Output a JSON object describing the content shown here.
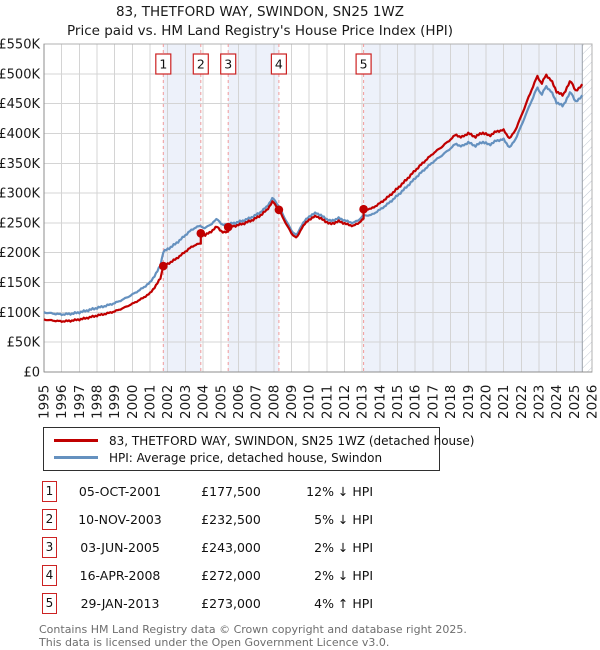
{
  "page": {
    "title_line1": "83, THETFORD WAY, SWINDON, SN25 1WZ",
    "title_line2": "Price paid vs. HM Land Registry's House Price Index (HPI)"
  },
  "chart_data": {
    "type": "line",
    "title": "83, THETFORD WAY, SWINDON, SN25 1WZ",
    "subtitle": "Price paid vs. HM Land Registry's House Price Index (HPI)",
    "x_range": [
      1995,
      2026
    ],
    "y_axis": {
      "min": 0,
      "max": 550000,
      "tick_step": 50000,
      "tick_labels": [
        "£0",
        "£50K",
        "£100K",
        "£150K",
        "£200K",
        "£250K",
        "£300K",
        "£350K",
        "£400K",
        "£450K",
        "£500K",
        "£550K"
      ]
    },
    "x_tick_labels": [
      "1995",
      "1996",
      "1997",
      "1998",
      "1999",
      "2000",
      "2001",
      "2002",
      "2003",
      "2004",
      "2005",
      "2006",
      "2007",
      "2008",
      "2009",
      "2010",
      "2011",
      "2012",
      "2013",
      "2014",
      "2015",
      "2016",
      "2017",
      "2018",
      "2019",
      "2020",
      "2021",
      "2022",
      "2023",
      "2024",
      "2025",
      "2026"
    ],
    "grid": true,
    "legend_position": "bottom",
    "series": [
      {
        "name": "83, THETFORD WAY, SWINDON, SN25 1WZ (detached house)",
        "color": "#c00000",
        "note": "price-paid line derived from HPI anchors scaled by ownership ratio segments",
        "ratio_segments": [
          {
            "from": 1995.0,
            "to": 2003.87,
            "ratio": 0.88
          },
          {
            "from": 2003.87,
            "to": 2005.42,
            "ratio": 0.95
          },
          {
            "from": 2005.42,
            "to": 2013.08,
            "ratio": 0.98
          },
          {
            "from": 2013.08,
            "to": 2025.45,
            "ratio": 1.04
          }
        ]
      },
      {
        "name": "HPI: Average price, detached house, Swindon",
        "color": "#6591bf",
        "units": "thousands_gbp",
        "anchors": [
          [
            1995.0,
            100
          ],
          [
            1995.5,
            98
          ],
          [
            1996.0,
            96.5
          ],
          [
            1996.5,
            97.5
          ],
          [
            1997.0,
            100
          ],
          [
            1997.5,
            103.5
          ],
          [
            1998.0,
            107.5
          ],
          [
            1998.5,
            111
          ],
          [
            1999.0,
            115.5
          ],
          [
            1999.5,
            122
          ],
          [
            2000.0,
            130
          ],
          [
            2000.5,
            139
          ],
          [
            2001.0,
            150
          ],
          [
            2001.4,
            168
          ],
          [
            2001.6,
            180
          ],
          [
            2001.75,
            201.7
          ],
          [
            2002.0,
            206
          ],
          [
            2002.4,
            214
          ],
          [
            2002.8,
            224
          ],
          [
            2003.2,
            235
          ],
          [
            2003.6,
            243
          ],
          [
            2003.87,
            244.7
          ],
          [
            2004.1,
            241
          ],
          [
            2004.5,
            249
          ],
          [
            2004.8,
            257
          ],
          [
            2005.1,
            246
          ],
          [
            2005.42,
            248
          ],
          [
            2005.8,
            250
          ],
          [
            2006.3,
            254
          ],
          [
            2006.8,
            260
          ],
          [
            2007.2,
            267
          ],
          [
            2007.6,
            277
          ],
          [
            2007.95,
            292
          ],
          [
            2008.29,
            277.5
          ],
          [
            2008.6,
            259
          ],
          [
            2009.0,
            237
          ],
          [
            2009.3,
            229
          ],
          [
            2009.6,
            248
          ],
          [
            2010.0,
            261
          ],
          [
            2010.4,
            267
          ],
          [
            2010.8,
            260
          ],
          [
            2011.2,
            253
          ],
          [
            2011.7,
            258
          ],
          [
            2012.1,
            253
          ],
          [
            2012.5,
            250
          ],
          [
            2012.8,
            255
          ],
          [
            2013.08,
            262.5
          ],
          [
            2013.5,
            263
          ],
          [
            2014.0,
            272
          ],
          [
            2014.5,
            283
          ],
          [
            2015.0,
            296
          ],
          [
            2015.5,
            310
          ],
          [
            2016.0,
            325
          ],
          [
            2016.5,
            339
          ],
          [
            2017.0,
            352
          ],
          [
            2017.5,
            363
          ],
          [
            2018.0,
            375
          ],
          [
            2018.3,
            383
          ],
          [
            2018.6,
            378
          ],
          [
            2019.0,
            385
          ],
          [
            2019.4,
            379
          ],
          [
            2019.8,
            386
          ],
          [
            2020.2,
            381
          ],
          [
            2020.6,
            388
          ],
          [
            2021.0,
            390
          ],
          [
            2021.35,
            376
          ],
          [
            2021.7,
            392
          ],
          [
            2022.0,
            413
          ],
          [
            2022.4,
            442
          ],
          [
            2022.9,
            477
          ],
          [
            2023.15,
            465
          ],
          [
            2023.4,
            479
          ],
          [
            2023.7,
            470
          ],
          [
            2024.0,
            452
          ],
          [
            2024.35,
            446
          ],
          [
            2024.8,
            470
          ],
          [
            2025.1,
            452
          ],
          [
            2025.45,
            464
          ]
        ]
      }
    ],
    "sale_markers": [
      {
        "num": "1",
        "year": 2001.75,
        "date": "05-OCT-2001",
        "price_gbp": 177500,
        "vs_hpi": "12% ↓ HPI"
      },
      {
        "num": "2",
        "year": 2003.87,
        "date": "10-NOV-2003",
        "price_gbp": 232500,
        "vs_hpi": "5% ↓ HPI"
      },
      {
        "num": "3",
        "year": 2005.42,
        "date": "03-JUN-2005",
        "price_gbp": 243000,
        "vs_hpi": "2% ↓ HPI"
      },
      {
        "num": "4",
        "year": 2008.29,
        "date": "16-APR-2008",
        "price_gbp": 272000,
        "vs_hpi": "2% ↓ HPI"
      },
      {
        "num": "5",
        "year": 2013.08,
        "date": "29-JAN-2013",
        "price_gbp": 273000,
        "vs_hpi": "4% ↑ HPI"
      }
    ],
    "shaded_bands": [
      [
        2001.75,
        2003.87
      ],
      [
        2005.42,
        2008.29
      ],
      [
        2013.08,
        2025.45
      ]
    ],
    "hatch_after": 2025.45,
    "colors": {
      "band": "#edf1fa",
      "grid": "#d4d4d4",
      "border": "#b0b0b0",
      "axis": "#8c8c8c",
      "dashed_sale_line": "#f19b9b",
      "marker_box_border": "#cc2222",
      "hatch_line": "#c2c9d4",
      "hatch_edge": "#9aa0a8"
    }
  },
  "legend": {
    "items": [
      {
        "label": "83, THETFORD WAY, SWINDON, SN25 1WZ (detached house)",
        "color": "#c00000"
      },
      {
        "label": "HPI: Average price, detached house, Swindon",
        "color": "#6591bf"
      }
    ]
  },
  "table": {
    "rows": [
      {
        "num": "1",
        "date": "05-OCT-2001",
        "price": "£177,500",
        "delta": "12% ↓ HPI"
      },
      {
        "num": "2",
        "date": "10-NOV-2003",
        "price": "£232,500",
        "delta": "5% ↓ HPI"
      },
      {
        "num": "3",
        "date": "03-JUN-2005",
        "price": "£243,000",
        "delta": "2% ↓ HPI"
      },
      {
        "num": "4",
        "date": "16-APR-2008",
        "price": "£272,000",
        "delta": "2% ↓ HPI"
      },
      {
        "num": "5",
        "date": "29-JAN-2013",
        "price": "£273,000",
        "delta": "4% ↑ HPI"
      }
    ]
  },
  "footer": {
    "line1": "Contains HM Land Registry data © Crown copyright and database right 2025.",
    "line2": "This data is licensed under the Open Government Licence v3.0."
  }
}
